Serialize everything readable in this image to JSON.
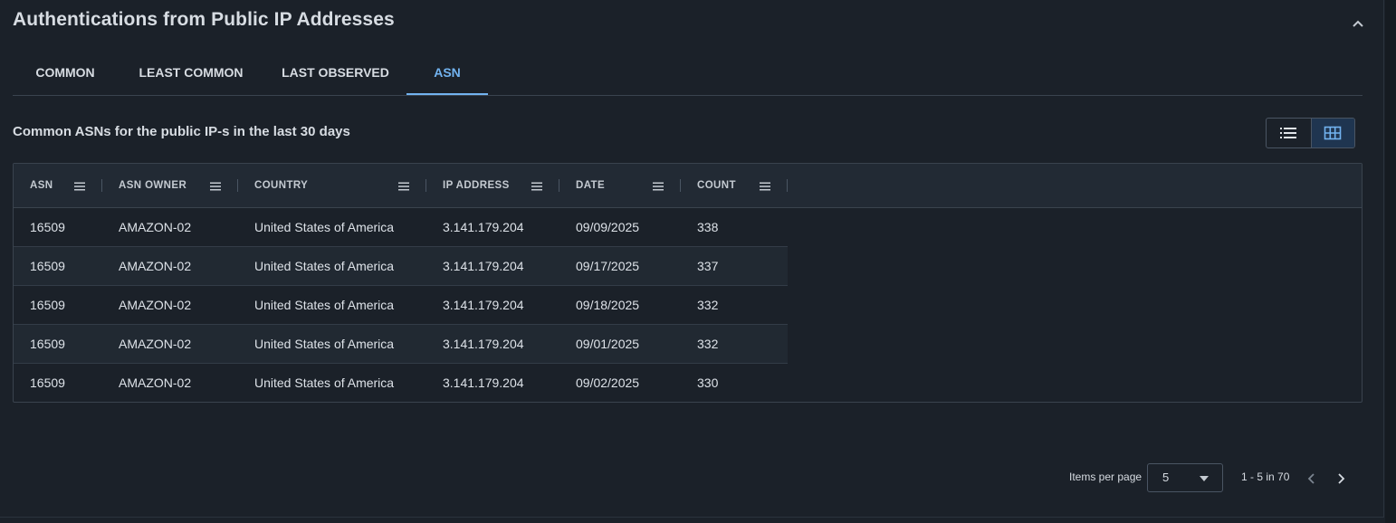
{
  "panel": {
    "title": "Authentications from Public IP Addresses"
  },
  "tabs": [
    {
      "label": "COMMON",
      "active": false
    },
    {
      "label": "LEAST COMMON",
      "active": false
    },
    {
      "label": "LAST OBSERVED",
      "active": false
    },
    {
      "label": "ASN",
      "active": true
    }
  ],
  "section": {
    "subtitle": "Common ASNs for the public IP-s in the last 30 days",
    "view_toggle": {
      "options": [
        "list-view-icon",
        "grid-view-icon"
      ],
      "selected": "grid-view-icon"
    }
  },
  "table": {
    "columns": [
      "ASN",
      "ASN OWNER",
      "COUNTRY",
      "IP ADDRESS",
      "DATE",
      "COUNT"
    ],
    "rows": [
      [
        "16509",
        "AMAZON-02",
        "United States of America",
        "3.141.179.204",
        "09/09/2025",
        "338"
      ],
      [
        "16509",
        "AMAZON-02",
        "United States of America",
        "3.141.179.204",
        "09/17/2025",
        "337"
      ],
      [
        "16509",
        "AMAZON-02",
        "United States of America",
        "3.141.179.204",
        "09/18/2025",
        "332"
      ],
      [
        "16509",
        "AMAZON-02",
        "United States of America",
        "3.141.179.204",
        "09/01/2025",
        "332"
      ],
      [
        "16509",
        "AMAZON-02",
        "United States of America",
        "3.141.179.204",
        "09/02/2025",
        "330"
      ]
    ]
  },
  "pagination": {
    "items_per_page_label": "Items per page",
    "items_per_page_value": "5",
    "range_text": "1 - 5 in 70"
  },
  "colors": {
    "background": "#1b2129",
    "accent": "#72b3f0",
    "header_bg": "#222a34"
  }
}
